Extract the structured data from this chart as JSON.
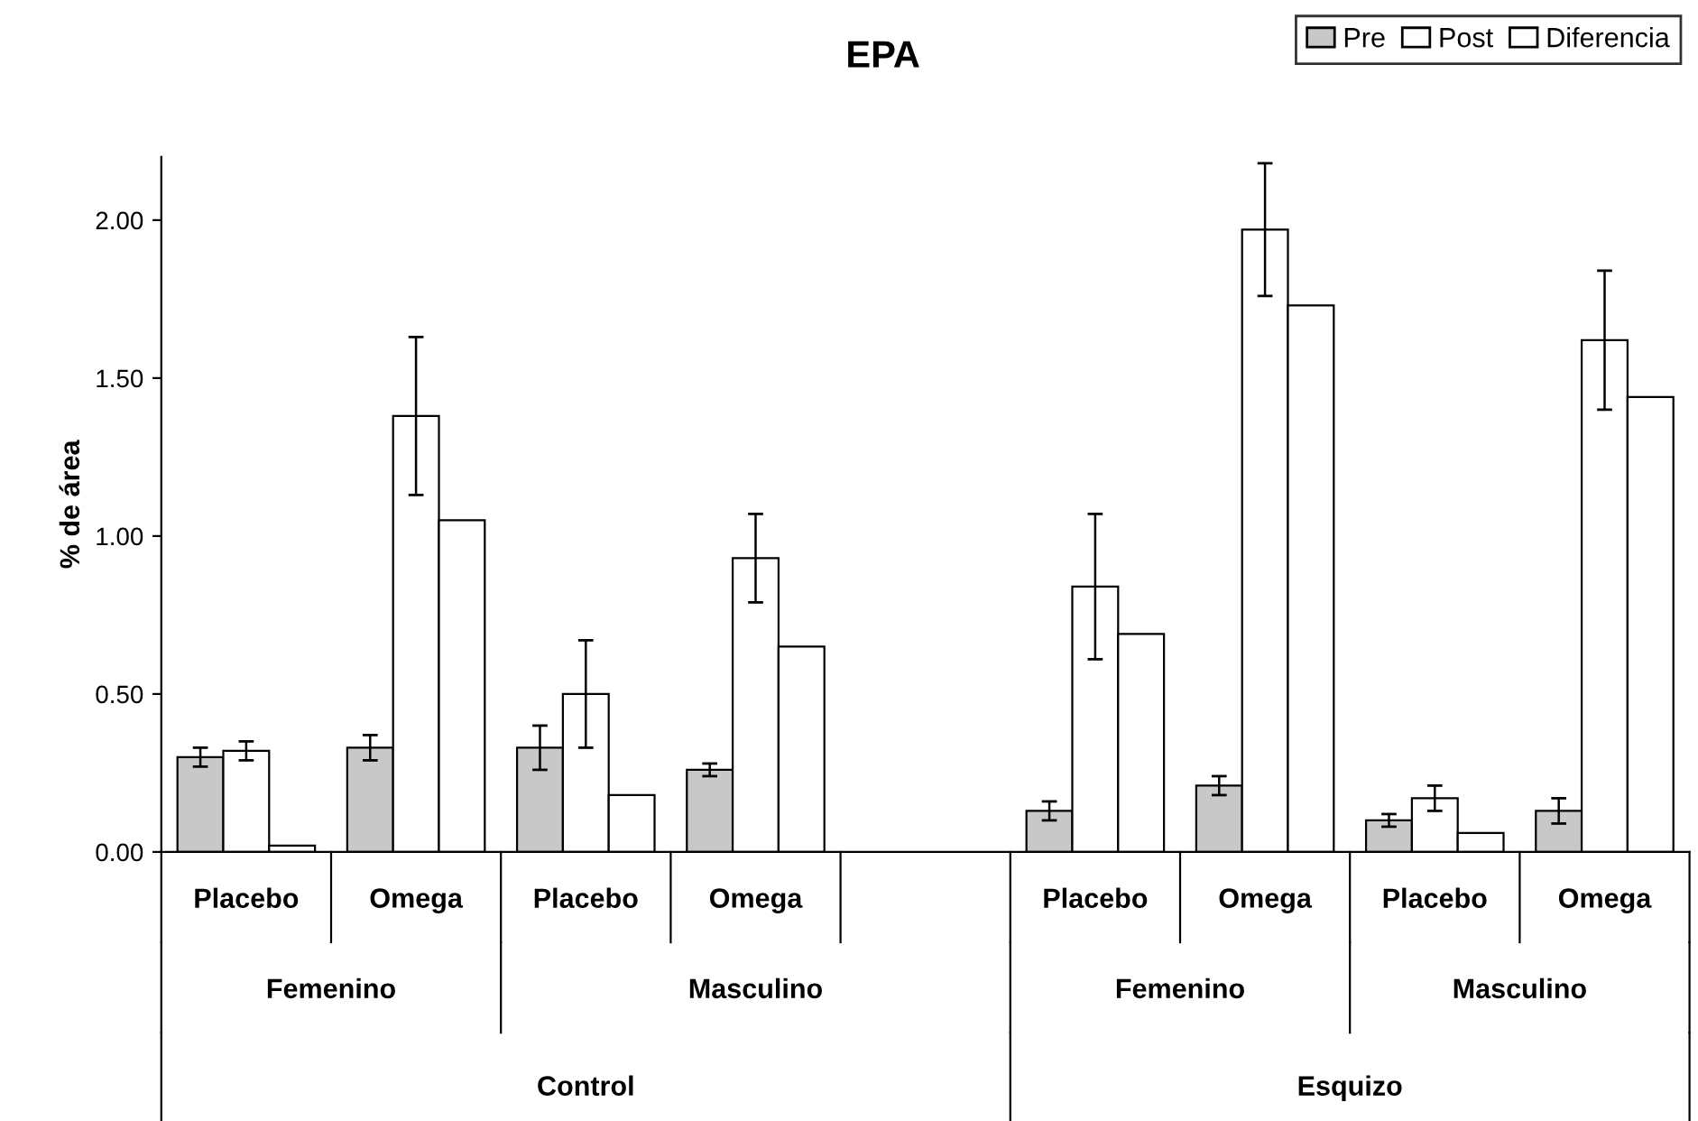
{
  "chart_data": {
    "type": "bar",
    "title": "EPA",
    "ylabel": "% de área",
    "categories": [
      "Placebo",
      "Omega",
      "Placebo",
      "Omega",
      null,
      "Placebo",
      "Omega",
      "Placebo",
      "Omega"
    ],
    "series": [
      {
        "name": "Pre",
        "color": "#c8c8c8",
        "values": [
          0.3,
          0.33,
          0.33,
          0.26,
          null,
          0.13,
          0.21,
          0.1,
          0.13
        ],
        "errors": [
          0.03,
          0.04,
          0.07,
          0.02,
          null,
          0.03,
          0.03,
          0.02,
          0.04
        ]
      },
      {
        "name": "Post",
        "color": "#ffffff",
        "values": [
          0.32,
          1.38,
          0.5,
          0.93,
          null,
          0.84,
          1.97,
          0.17,
          1.62
        ],
        "errors": [
          0.03,
          0.25,
          0.17,
          0.14,
          null,
          0.23,
          0.21,
          0.04,
          0.22
        ]
      },
      {
        "name": "Diferencia",
        "color": "#ffffff",
        "values": [
          0.02,
          1.05,
          0.18,
          0.65,
          null,
          0.69,
          1.73,
          0.06,
          1.44
        ]
      }
    ],
    "ylim": [
      0,
      2.2
    ],
    "yticks": [
      {
        "value": 0,
        "label": "0.00"
      },
      {
        "value": 0.5,
        "label": "0.50"
      },
      {
        "value": 1,
        "label": "1.00"
      },
      {
        "value": 1.5,
        "label": "1.50"
      },
      {
        "value": 2,
        "label": "2.00"
      }
    ],
    "legend": "top right",
    "grid": false,
    "annotations": [
      "Femenino",
      "Masculino",
      "Femenino",
      "Masculino",
      "Control",
      "Esquizo"
    ]
  }
}
